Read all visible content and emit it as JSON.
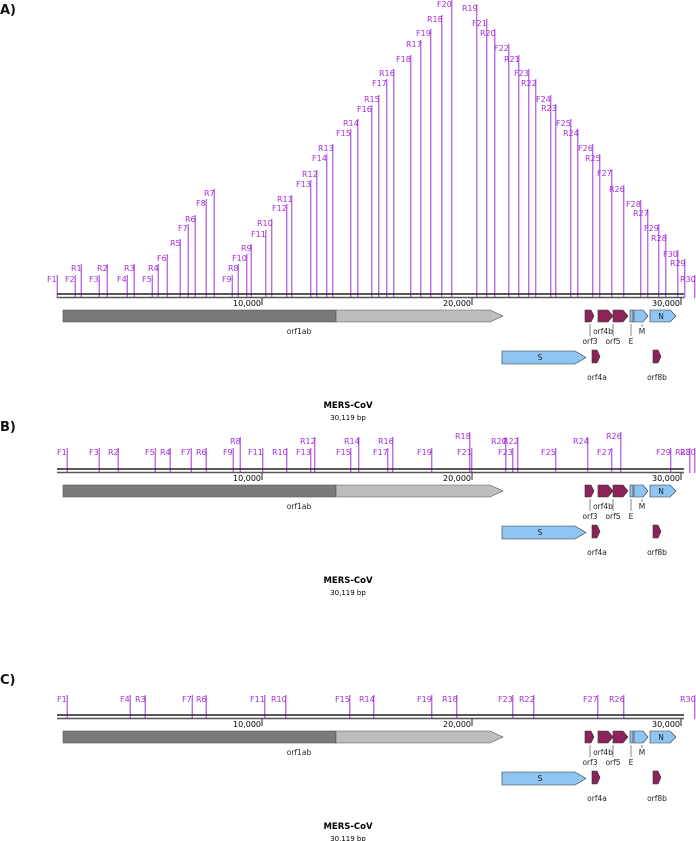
{
  "panels": [
    {
      "label": "A)",
      "primers": [
        "F1",
        "R1",
        "F2",
        "F3",
        "R2",
        "F4",
        "R3",
        "F5",
        "R4",
        "F6",
        "R5",
        "F7",
        "R6",
        "F8",
        "R7",
        "F9",
        "R8",
        "F10",
        "R9",
        "F11",
        "R10",
        "F12",
        "R11",
        "F13",
        "R12",
        "F14",
        "R13",
        "F15",
        "R14",
        "F16",
        "R15",
        "F17",
        "R16",
        "F18",
        "R17",
        "F19",
        "R18",
        "F20",
        "R19",
        "F21",
        "R20",
        "F22",
        "R21",
        "F23",
        "R22",
        "F24",
        "R23",
        "F25",
        "R24",
        "F26",
        "R25",
        "F27",
        "R26",
        "F28",
        "R27",
        "F29",
        "R28",
        "F30",
        "R29",
        "R30"
      ],
      "axis_labels": [
        "10,000",
        "20,000",
        "30,000"
      ],
      "genes": [
        "orf1ab",
        "S",
        "orf3",
        "orf4a",
        "orf4b",
        "orf5",
        "E",
        "M",
        "N",
        "orf8b"
      ],
      "title": "MERS-CoV",
      "subtitle": "30,119 bp"
    },
    {
      "label": "B)",
      "primers": [
        "F1",
        "F3",
        "R2",
        "F5",
        "R4",
        "F7",
        "R6",
        "R8",
        "F9",
        "F11",
        "R10",
        "R12",
        "F13",
        "R14",
        "F15",
        "R16",
        "F17",
        "R18",
        "F19",
        "R20",
        "F21",
        "R22",
        "F23",
        "R24",
        "F25",
        "R26",
        "F27",
        "F29",
        "R28",
        "R30"
      ],
      "axis_labels": [
        "10,000",
        "20,000",
        "30,000"
      ],
      "genes": [
        "orf1ab",
        "S",
        "orf3",
        "orf4a",
        "orf4b",
        "orf5",
        "E",
        "M",
        "N",
        "orf8b"
      ],
      "title": "MERS-CoV",
      "subtitle": "30,119 bp"
    },
    {
      "label": "C)",
      "primers": [
        "F1",
        "F4",
        "R3",
        "F7",
        "R6",
        "F11",
        "R10",
        "F15",
        "R14",
        "F19",
        "R18",
        "F23",
        "R22",
        "F27",
        "R26",
        "R30"
      ],
      "axis_labels": [
        "10,000",
        "20,000",
        "30,000"
      ],
      "genes": [
        "orf1ab",
        "S",
        "orf3",
        "orf4a",
        "orf4b",
        "orf5",
        "E",
        "M",
        "N",
        "orf8b"
      ],
      "title": "MERS-CoV",
      "subtitle": "30,119 bp"
    }
  ]
}
